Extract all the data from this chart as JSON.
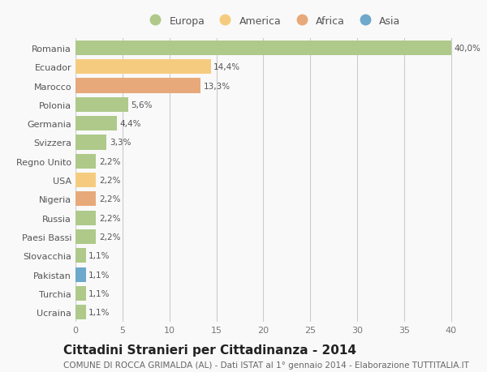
{
  "categories": [
    "Romania",
    "Ecuador",
    "Marocco",
    "Polonia",
    "Germania",
    "Svizzera",
    "Regno Unito",
    "USA",
    "Nigeria",
    "Russia",
    "Paesi Bassi",
    "Slovacchia",
    "Pakistan",
    "Turchia",
    "Ucraina"
  ],
  "values": [
    40.0,
    14.4,
    13.3,
    5.6,
    4.4,
    3.3,
    2.2,
    2.2,
    2.2,
    2.2,
    2.2,
    1.1,
    1.1,
    1.1,
    1.1
  ],
  "continents": [
    "Europa",
    "America",
    "Africa",
    "Europa",
    "Europa",
    "Europa",
    "Europa",
    "America",
    "Africa",
    "Europa",
    "Europa",
    "Europa",
    "Asia",
    "Europa",
    "Europa"
  ],
  "labels": [
    "40,0%",
    "14,4%",
    "13,3%",
    "5,6%",
    "4,4%",
    "3,3%",
    "2,2%",
    "2,2%",
    "2,2%",
    "2,2%",
    "2,2%",
    "1,1%",
    "1,1%",
    "1,1%",
    "1,1%"
  ],
  "colors": {
    "Europa": "#aec98a",
    "America": "#f5cc7f",
    "Africa": "#e8a97a",
    "Asia": "#6ea8cb"
  },
  "xlim": [
    0,
    42
  ],
  "xticks": [
    0,
    5,
    10,
    15,
    20,
    25,
    30,
    35,
    40
  ],
  "title": "Cittadini Stranieri per Cittadinanza - 2014",
  "subtitle": "COMUNE DI ROCCA GRIMALDA (AL) - Dati ISTAT al 1° gennaio 2014 - Elaborazione TUTTITALIA.IT",
  "background_color": "#f9f9f9",
  "grid_color": "#cccccc",
  "bar_height": 0.78,
  "title_fontsize": 11,
  "subtitle_fontsize": 7.5,
  "label_fontsize": 7.5,
  "tick_fontsize": 8,
  "legend_fontsize": 9
}
